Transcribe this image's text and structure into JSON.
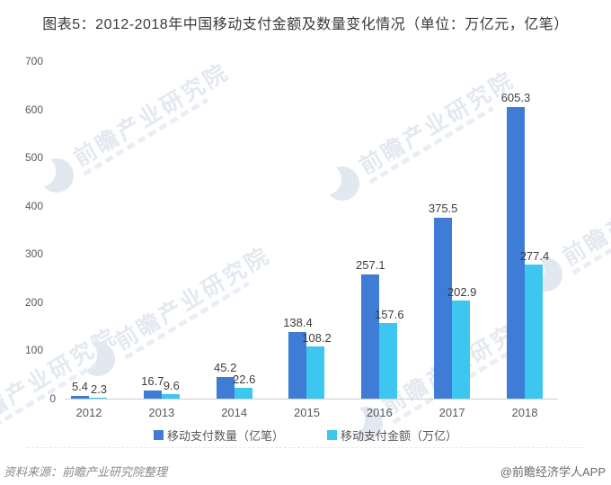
{
  "title": "图表5：2012-2018年中国移动支付金额及数量变化情况（单位：万亿元，亿笔）",
  "chart_data": {
    "type": "bar",
    "categories": [
      "2012",
      "2013",
      "2014",
      "2015",
      "2016",
      "2017",
      "2018"
    ],
    "series": [
      {
        "name": "移动支付数量（亿笔）",
        "color": "#3f7cd6",
        "values": [
          5.4,
          16.7,
          45.2,
          138.4,
          257.1,
          375.5,
          605.3
        ]
      },
      {
        "name": "移动支付金额（万亿）",
        "color": "#3cc6f0",
        "values": [
          2.3,
          9.6,
          22.6,
          108.2,
          157.6,
          202.9,
          277.4
        ]
      }
    ],
    "title": "图表5：2012-2018年中国移动支付金额及数量变化情况（单位：万亿元，亿笔）",
    "xlabel": "",
    "ylabel": "",
    "ylim": [
      0,
      700
    ],
    "yticks": [
      0,
      100,
      200,
      300,
      400,
      500,
      600,
      700
    ],
    "grid": false,
    "legend_position": "bottom",
    "value_labels_shown": true
  },
  "watermark": {
    "text": "前瞻产业研究院"
  },
  "footer": {
    "source": "资料来源：前瞻产业研究院整理",
    "credit": "@前瞻经济学人APP"
  },
  "colors": {
    "title_text": "#3a3a3a",
    "axis_labels": "#595959",
    "axis_line": "#cfcfcf",
    "value_labels": "#3d3d3d",
    "series_count": "#3f7cd6",
    "series_amount": "#3cc6f0",
    "watermark": "#e4e9f1"
  }
}
